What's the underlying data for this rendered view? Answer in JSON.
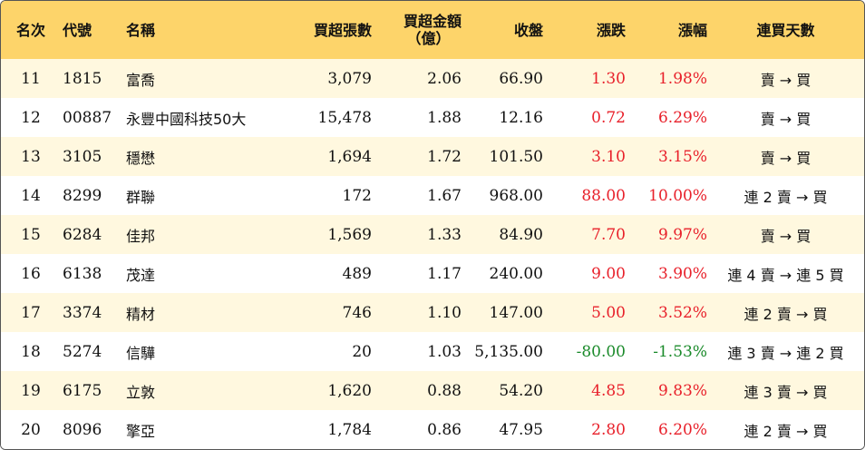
{
  "headers": {
    "rank": "名次",
    "code": "代號",
    "name": "名稱",
    "shares": "買超張數",
    "amount_line1": "買超金額",
    "amount_line2": "（億）",
    "close": "收盤",
    "change": "漲跌",
    "pct": "漲幅",
    "days": "連買天數"
  },
  "rows": [
    {
      "rank": "11",
      "code": "1815",
      "name": "富喬",
      "shares": "3,079",
      "amount": "2.06",
      "close": "66.90",
      "change": "1.30",
      "pct": "1.98%",
      "days": "賣 → 買",
      "trend": "up"
    },
    {
      "rank": "12",
      "code": "00887",
      "name": "永豐中國科技50大",
      "shares": "15,478",
      "amount": "1.88",
      "close": "12.16",
      "change": "0.72",
      "pct": "6.29%",
      "days": "賣 → 買",
      "trend": "up"
    },
    {
      "rank": "13",
      "code": "3105",
      "name": "穩懋",
      "shares": "1,694",
      "amount": "1.72",
      "close": "101.50",
      "change": "3.10",
      "pct": "3.15%",
      "days": "賣 → 買",
      "trend": "up"
    },
    {
      "rank": "14",
      "code": "8299",
      "name": "群聯",
      "shares": "172",
      "amount": "1.67",
      "close": "968.00",
      "change": "88.00",
      "pct": "10.00%",
      "days": "連 2 賣 → 買",
      "trend": "up"
    },
    {
      "rank": "15",
      "code": "6284",
      "name": "佳邦",
      "shares": "1,569",
      "amount": "1.33",
      "close": "84.90",
      "change": "7.70",
      "pct": "9.97%",
      "days": "賣 → 買",
      "trend": "up"
    },
    {
      "rank": "16",
      "code": "6138",
      "name": "茂達",
      "shares": "489",
      "amount": "1.17",
      "close": "240.00",
      "change": "9.00",
      "pct": "3.90%",
      "days": "連 4 賣 → 連 5 買",
      "trend": "up"
    },
    {
      "rank": "17",
      "code": "3374",
      "name": "精材",
      "shares": "746",
      "amount": "1.10",
      "close": "147.00",
      "change": "5.00",
      "pct": "3.52%",
      "days": "連 2 賣 → 買",
      "trend": "up"
    },
    {
      "rank": "18",
      "code": "5274",
      "name": "信驊",
      "shares": "20",
      "amount": "1.03",
      "close": "5,135.00",
      "change": "-80.00",
      "pct": "-1.53%",
      "days": "連 3 賣 → 連 2 買",
      "trend": "down"
    },
    {
      "rank": "19",
      "code": "6175",
      "name": "立敦",
      "shares": "1,620",
      "amount": "0.88",
      "close": "54.20",
      "change": "4.85",
      "pct": "9.83%",
      "days": "連 3 賣 → 買",
      "trend": "up"
    },
    {
      "rank": "20",
      "code": "8096",
      "name": "擎亞",
      "shares": "1,784",
      "amount": "0.86",
      "close": "47.95",
      "change": "2.80",
      "pct": "6.20%",
      "days": "連 2 賣 → 買",
      "trend": "up"
    }
  ],
  "colors": {
    "header_bg": "#fdd46a",
    "odd_row_bg": "#fff8df",
    "up": "#e8202a",
    "down": "#1a8a2a"
  }
}
